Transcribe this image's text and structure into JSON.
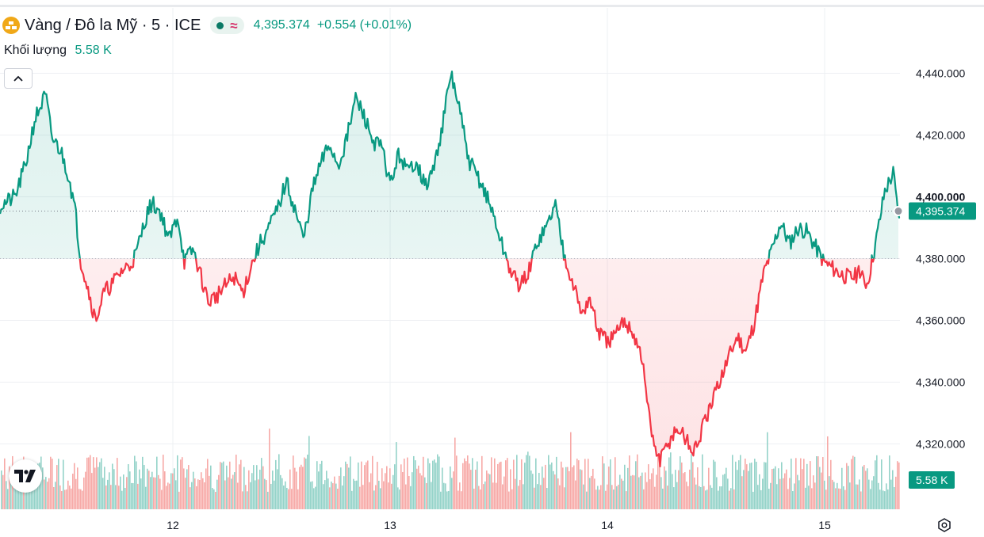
{
  "header": {
    "title": "Vàng / Đô la Mỹ · 5 · ICE",
    "price": "4,395.374",
    "change": "+0.554 (+0.01%)"
  },
  "volume": {
    "label": "Khối lượng",
    "value": "5.58 K"
  },
  "colors": {
    "up": "#089981",
    "down": "#f23645",
    "volume_up": "#94d3c9",
    "volume_down": "#f7a9a7",
    "brand": "#f0a818"
  },
  "icons": {
    "collapse": "chevron-up-icon",
    "settings": "settings-hexagon-icon",
    "logo": "gold-bars-icon",
    "tv": "tradingview-logo-icon"
  },
  "chart_data": {
    "type": "area",
    "baseline": 4380,
    "ylim": [
      4300,
      4452
    ],
    "y_ticks": [
      4320,
      4340,
      4360,
      4380,
      4400,
      4420,
      4440
    ],
    "y_tick_labels": [
      "4,320.000",
      "4,340.000",
      "4,360.000",
      "4,380.000",
      "4,400.000",
      "4,420.000",
      "4,440.000"
    ],
    "last_price_label": "4,395.374",
    "last_price": 4395.374,
    "volume_label": "5.58 K",
    "x_labels": [
      "12",
      "13",
      "14",
      "15"
    ],
    "x_label_positions": [
      12,
      13,
      14,
      15
    ],
    "xlim": [
      11.2,
      15.35
    ],
    "grid": true,
    "series": [
      {
        "values": [
          [
            11.2,
            4397
          ],
          [
            11.27,
            4400
          ],
          [
            11.32,
            4411
          ],
          [
            11.36,
            4425
          ],
          [
            11.41,
            4433
          ],
          [
            11.44,
            4419
          ],
          [
            11.48,
            4415
          ],
          [
            11.52,
            4406
          ],
          [
            11.55,
            4394
          ],
          [
            11.57,
            4380
          ],
          [
            11.6,
            4372
          ],
          [
            11.64,
            4360
          ],
          [
            11.68,
            4369
          ],
          [
            11.72,
            4372
          ],
          [
            11.76,
            4376
          ],
          [
            11.8,
            4378
          ],
          [
            11.83,
            4382
          ],
          [
            11.87,
            4393
          ],
          [
            11.9,
            4398
          ],
          [
            11.94,
            4395
          ],
          [
            11.98,
            4386
          ],
          [
            12.02,
            4394
          ],
          [
            12.05,
            4379
          ],
          [
            12.09,
            4383
          ],
          [
            12.12,
            4376
          ],
          [
            12.16,
            4366
          ],
          [
            12.2,
            4368
          ],
          [
            12.25,
            4372
          ],
          [
            12.28,
            4374
          ],
          [
            12.32,
            4369
          ],
          [
            12.36,
            4378
          ],
          [
            12.4,
            4385
          ],
          [
            12.44,
            4390
          ],
          [
            12.48,
            4396
          ],
          [
            12.52,
            4405
          ],
          [
            12.56,
            4396
          ],
          [
            12.6,
            4386
          ],
          [
            12.64,
            4402
          ],
          [
            12.68,
            4411
          ],
          [
            12.72,
            4417
          ],
          [
            12.76,
            4410
          ],
          [
            12.8,
            4419
          ],
          [
            12.84,
            4432
          ],
          [
            12.88,
            4426
          ],
          [
            12.92,
            4418
          ],
          [
            12.96,
            4416
          ],
          [
            13.0,
            4404
          ],
          [
            13.04,
            4414
          ],
          [
            13.08,
            4408
          ],
          [
            13.12,
            4412
          ],
          [
            13.16,
            4403
          ],
          [
            13.2,
            4409
          ],
          [
            13.24,
            4423
          ],
          [
            13.28,
            4440
          ],
          [
            13.32,
            4428
          ],
          [
            13.36,
            4412
          ],
          [
            13.4,
            4407
          ],
          [
            13.44,
            4401
          ],
          [
            13.48,
            4393
          ],
          [
            13.52,
            4383
          ],
          [
            13.56,
            4375
          ],
          [
            13.6,
            4371
          ],
          [
            13.64,
            4376
          ],
          [
            13.68,
            4386
          ],
          [
            13.72,
            4390
          ],
          [
            13.76,
            4398
          ],
          [
            13.8,
            4382
          ],
          [
            13.84,
            4373
          ],
          [
            13.88,
            4362
          ],
          [
            13.92,
            4367
          ],
          [
            13.96,
            4356
          ],
          [
            14.0,
            4353
          ],
          [
            14.04,
            4355
          ],
          [
            14.08,
            4360
          ],
          [
            14.12,
            4356
          ],
          [
            14.16,
            4348
          ],
          [
            14.2,
            4325
          ],
          [
            14.24,
            4314
          ],
          [
            14.28,
            4320
          ],
          [
            14.32,
            4325
          ],
          [
            14.36,
            4322
          ],
          [
            14.4,
            4317
          ],
          [
            14.44,
            4325
          ],
          [
            14.48,
            4332
          ],
          [
            14.52,
            4341
          ],
          [
            14.56,
            4348
          ],
          [
            14.6,
            4355
          ],
          [
            14.64,
            4350
          ],
          [
            14.68,
            4360
          ],
          [
            14.72,
            4375
          ],
          [
            14.76,
            4383
          ],
          [
            14.8,
            4392
          ],
          [
            14.84,
            4385
          ],
          [
            14.88,
            4390
          ],
          [
            14.92,
            4389
          ],
          [
            14.96,
            4384
          ],
          [
            15.0,
            4379
          ],
          [
            15.04,
            4377
          ],
          [
            15.08,
            4375
          ],
          [
            15.12,
            4374
          ],
          [
            15.16,
            4375
          ],
          [
            15.2,
            4372
          ],
          [
            15.24,
            4386
          ],
          [
            15.28,
            4402
          ],
          [
            15.32,
            4408
          ],
          [
            15.34,
            4395
          ]
        ]
      }
    ]
  }
}
